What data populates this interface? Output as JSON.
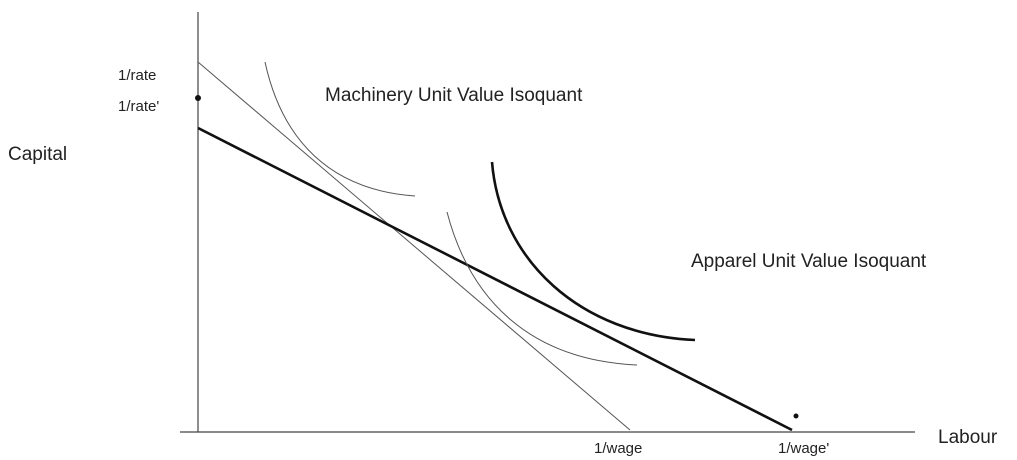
{
  "axes": {
    "y_label": "Capital",
    "x_label": "Labour"
  },
  "labels": {
    "rate": "1/rate",
    "rate_prime": "1/rate'",
    "wage": "1/wage",
    "wage_prime": "1/wage'"
  },
  "isoquants": {
    "machinery": "Machinery Unit Value Isoquant",
    "apparel": "Apparel Unit Value Isoquant"
  }
}
